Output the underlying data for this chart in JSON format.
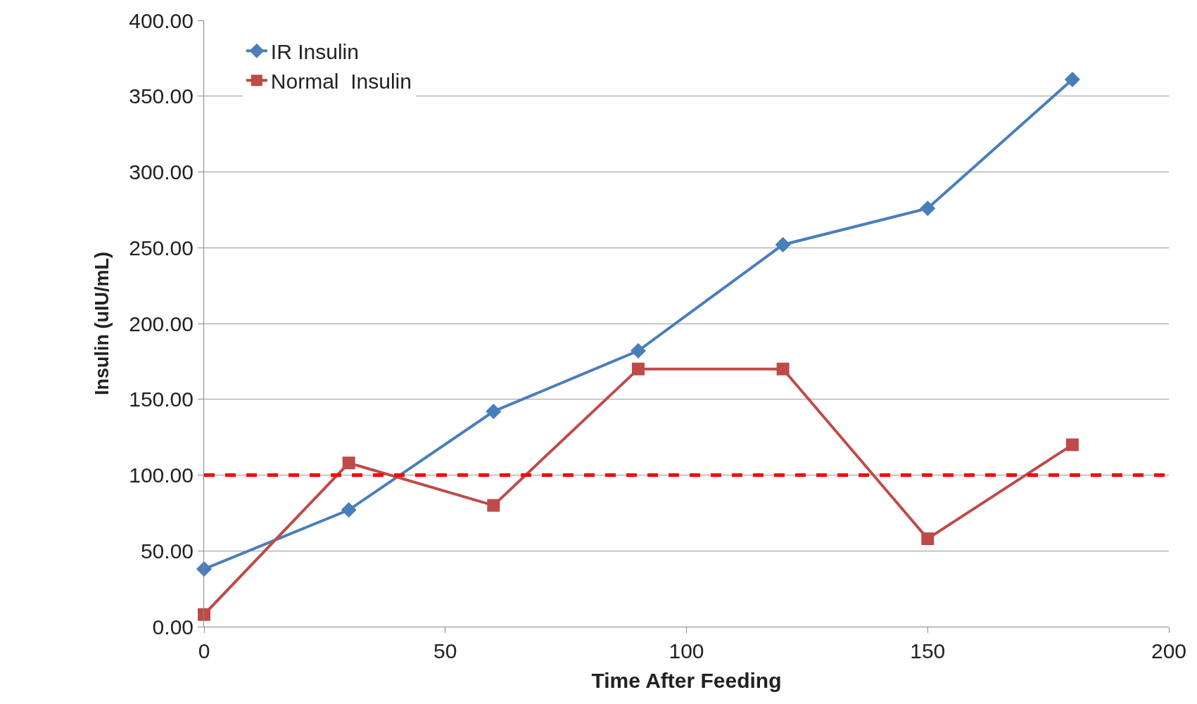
{
  "chart_data": {
    "type": "line",
    "xlabel": "Time After Feeding",
    "ylabel": "Insulin (uIU/mL)",
    "x": [
      0,
      30,
      60,
      90,
      120,
      150,
      180
    ],
    "series": [
      {
        "name": "IR Insulin",
        "color": "#4a7ebb",
        "marker": "diamond",
        "values": [
          38,
          77,
          142,
          182,
          252,
          276,
          361
        ]
      },
      {
        "name": "Normal  Insulin",
        "color": "#be4b48",
        "marker": "square",
        "values": [
          8,
          108,
          80,
          170,
          170,
          58,
          120
        ]
      }
    ],
    "ref_lines": [
      {
        "axis": "y",
        "value": 100,
        "color": "#ff0000",
        "line_style": "dashed"
      }
    ],
    "xlim": [
      0,
      200
    ],
    "xticks": [
      0,
      50,
      100,
      150,
      200
    ],
    "ylim": [
      0,
      400
    ],
    "yticks": [
      {
        "value": 0,
        "label": "0.00"
      },
      {
        "value": 50,
        "label": "50.00"
      },
      {
        "value": 100,
        "label": "100.00"
      },
      {
        "value": 150,
        "label": "150.00"
      },
      {
        "value": 200,
        "label": "200.00"
      },
      {
        "value": 250,
        "label": "250.00"
      },
      {
        "value": 300,
        "label": "300.00"
      },
      {
        "value": 350,
        "label": "350.00"
      },
      {
        "value": 400,
        "label": "400.00"
      }
    ],
    "grid": "y",
    "legend": "top left"
  }
}
